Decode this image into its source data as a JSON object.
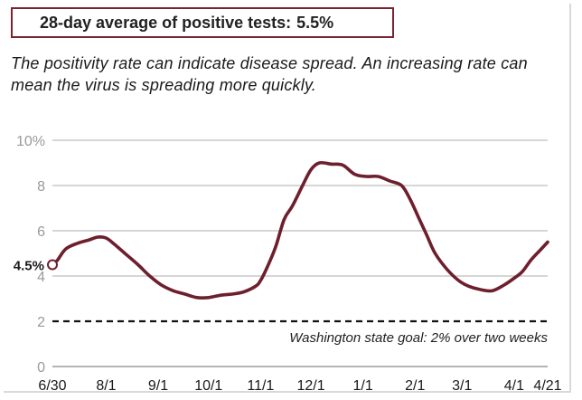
{
  "header": {
    "label": "28-day average of positive tests:",
    "value": "5.5%",
    "description": "The positivity rate can indicate disease spread. An increasing rate can mean the virus is spreading more quickly."
  },
  "colors": {
    "series": "#6e1f2e",
    "border": "#7a2431",
    "grid": "#bdbdbd",
    "goal": "#111111"
  },
  "chart_data": {
    "type": "line",
    "title": "",
    "xlabel": "",
    "ylabel": "",
    "ylim": [
      0,
      10
    ],
    "ytick_labels": [
      "0",
      "2",
      "4",
      "6",
      "8",
      "10%"
    ],
    "yticks": [
      0,
      2,
      4,
      6,
      8,
      10
    ],
    "xtick_labels": [
      "6/30",
      "8/1",
      "9/1",
      "10/1",
      "11/1",
      "12/1",
      "1/1",
      "2/1",
      "3/1",
      "4/1",
      "4/21"
    ],
    "xticks": [
      "2020-06-30",
      "2020-08-01",
      "2020-09-01",
      "2020-10-01",
      "2020-11-01",
      "2020-12-01",
      "2021-01-01",
      "2021-02-01",
      "2021-03-01",
      "2021-04-01",
      "2021-04-21"
    ],
    "grid": true,
    "series": [
      {
        "points": [
          [
            "2020-06-30",
            4.5
          ],
          [
            "2020-07-03",
            4.7
          ],
          [
            "2020-07-08",
            5.2
          ],
          [
            "2020-07-15",
            5.45
          ],
          [
            "2020-07-22",
            5.6
          ],
          [
            "2020-07-27",
            5.72
          ],
          [
            "2020-08-01",
            5.68
          ],
          [
            "2020-08-06",
            5.4
          ],
          [
            "2020-08-13",
            4.95
          ],
          [
            "2020-08-20",
            4.5
          ],
          [
            "2020-08-27",
            4.0
          ],
          [
            "2020-09-03",
            3.6
          ],
          [
            "2020-09-10",
            3.35
          ],
          [
            "2020-09-17",
            3.2
          ],
          [
            "2020-09-24",
            3.05
          ],
          [
            "2020-10-01",
            3.05
          ],
          [
            "2020-10-08",
            3.15
          ],
          [
            "2020-10-15",
            3.2
          ],
          [
            "2020-10-22",
            3.3
          ],
          [
            "2020-10-29",
            3.55
          ],
          [
            "2020-11-01",
            3.8
          ],
          [
            "2020-11-05",
            4.4
          ],
          [
            "2020-11-10",
            5.3
          ],
          [
            "2020-11-15",
            6.5
          ],
          [
            "2020-11-20",
            7.1
          ],
          [
            "2020-11-26",
            8.0
          ],
          [
            "2020-12-01",
            8.7
          ],
          [
            "2020-12-06",
            9.0
          ],
          [
            "2020-12-13",
            8.95
          ],
          [
            "2020-12-20",
            8.9
          ],
          [
            "2020-12-27",
            8.5
          ],
          [
            "2021-01-03",
            8.4
          ],
          [
            "2021-01-10",
            8.4
          ],
          [
            "2021-01-17",
            8.2
          ],
          [
            "2021-01-24",
            8.0
          ],
          [
            "2021-01-29",
            7.4
          ],
          [
            "2021-02-03",
            6.6
          ],
          [
            "2021-02-08",
            5.8
          ],
          [
            "2021-02-13",
            5.0
          ],
          [
            "2021-02-20",
            4.3
          ],
          [
            "2021-02-27",
            3.8
          ],
          [
            "2021-03-05",
            3.55
          ],
          [
            "2021-03-12",
            3.4
          ],
          [
            "2021-03-19",
            3.35
          ],
          [
            "2021-03-26",
            3.6
          ],
          [
            "2021-04-01",
            3.9
          ],
          [
            "2021-04-06",
            4.2
          ],
          [
            "2021-04-11",
            4.7
          ],
          [
            "2021-04-16",
            5.1
          ],
          [
            "2021-04-21",
            5.5
          ]
        ]
      }
    ],
    "start_label": "4.5%",
    "goal": {
      "value": 2,
      "label": "Washington state goal: 2% over two weeks"
    }
  }
}
